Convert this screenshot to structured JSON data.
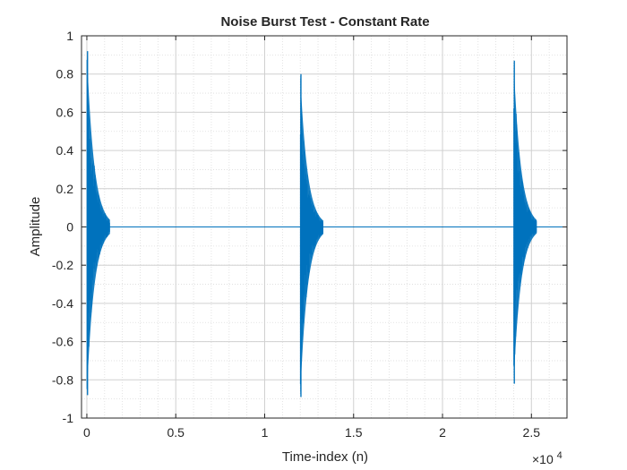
{
  "chart_data": {
    "type": "line",
    "title": "Noise Burst Test - Constant Rate",
    "xlabel": "Time-index (n)",
    "ylabel": "Amplitude",
    "xlim": [
      -300,
      27000
    ],
    "ylim": [
      -1,
      1
    ],
    "x_multiplier_label": "×10",
    "x_multiplier_exponent": "4",
    "x_ticks": [
      0,
      5000,
      10000,
      15000,
      20000,
      25000
    ],
    "x_tick_labels": [
      "0",
      "0.5",
      "1",
      "1.5",
      "2",
      "2.5"
    ],
    "y_ticks": [
      -1,
      -0.8,
      -0.6,
      -0.4,
      -0.2,
      0,
      0.2,
      0.4,
      0.6,
      0.8,
      1
    ],
    "y_tick_labels": [
      "-1",
      "-0.8",
      "-0.6",
      "-0.4",
      "-0.2",
      "0",
      "0.2",
      "0.4",
      "0.6",
      "0.8",
      "1"
    ],
    "grid": true,
    "minor_grid": true,
    "series": [
      {
        "name": "signal",
        "color": "#0072BD",
        "bursts": [
          {
            "start": 0,
            "peak_pos": 0.92,
            "peak_neg": -0.88,
            "decay_samples": 1300
          },
          {
            "start": 12000,
            "peak_pos": 0.8,
            "peak_neg": -0.89,
            "decay_samples": 1300
          },
          {
            "start": 24000,
            "peak_pos": 0.87,
            "peak_neg": -0.82,
            "decay_samples": 1300
          }
        ]
      }
    ]
  }
}
